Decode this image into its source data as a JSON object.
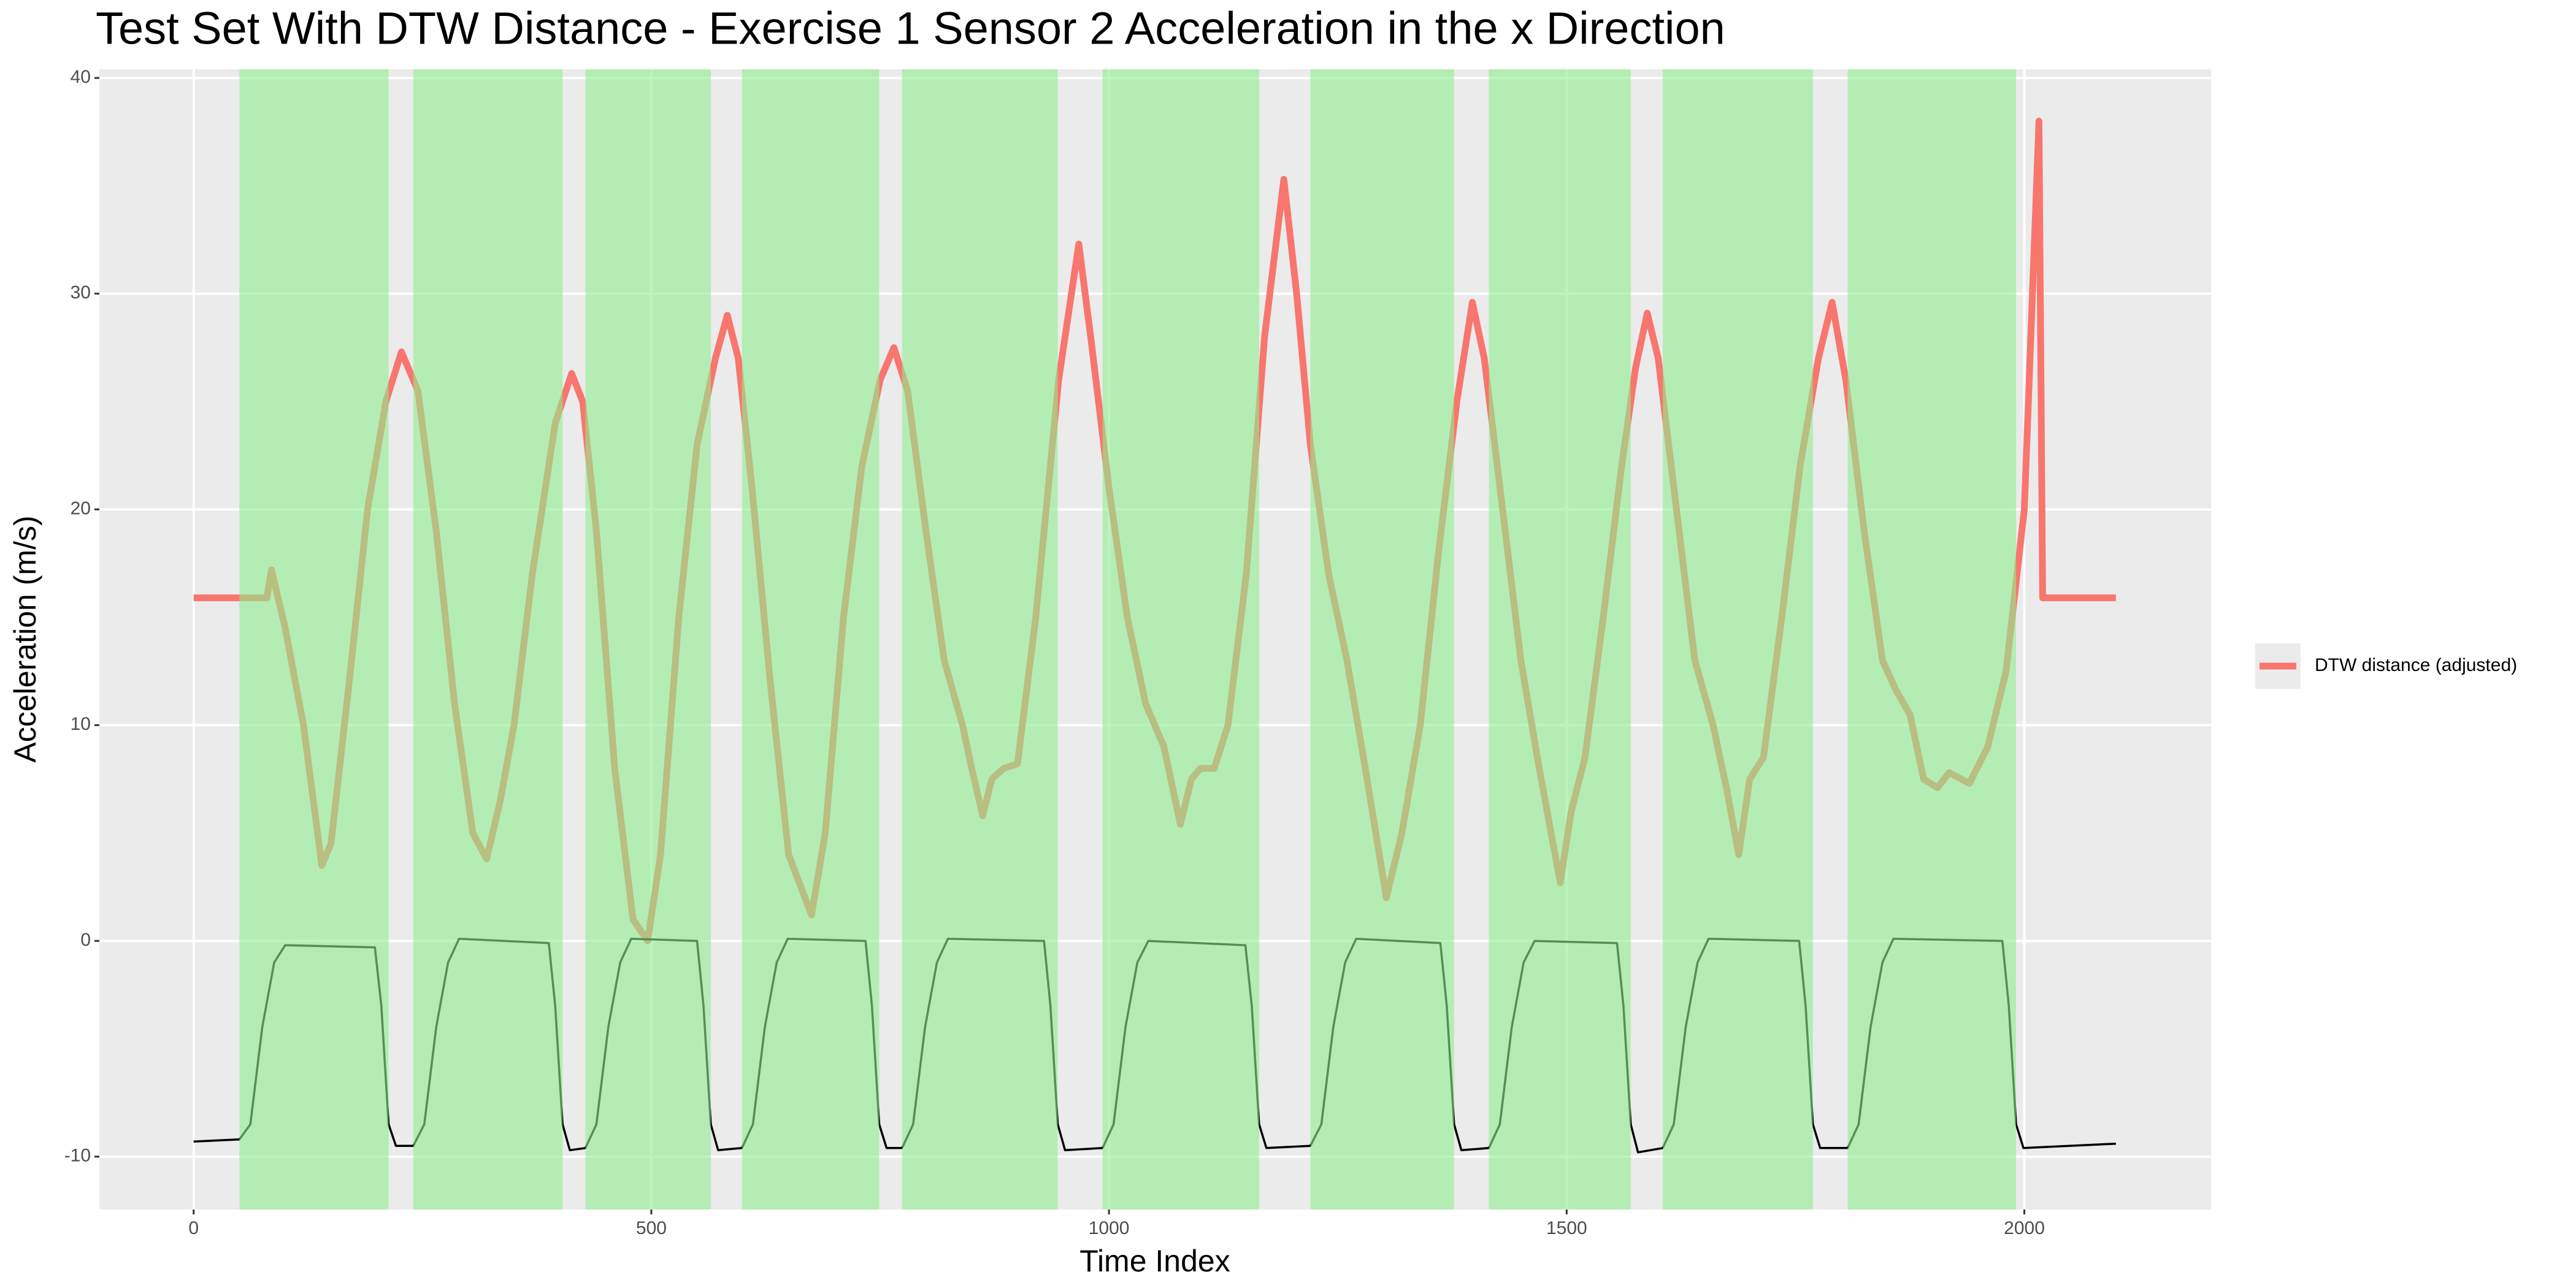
{
  "chart_data": {
    "type": "line",
    "title": "Test Set With DTW Distance - Exercise 1 Sensor 2 Acceleration in the x Direction",
    "x_label": "Time Index",
    "y_label": "Acceleration (m/s)",
    "xlim": [
      -103,
      2204
    ],
    "ylim": [
      -12.45,
      40.4
    ],
    "xticks": [
      0,
      500,
      1000,
      1500,
      2000
    ],
    "yticks": [
      -10,
      0,
      10,
      20,
      30,
      40
    ],
    "grid": true,
    "legend_position": "right",
    "region_color": "#90ee90",
    "regions": [
      {
        "start": 50,
        "end": 213
      },
      {
        "start": 240,
        "end": 403
      },
      {
        "start": 428,
        "end": 565
      },
      {
        "start": 599,
        "end": 749
      },
      {
        "start": 774,
        "end": 944
      },
      {
        "start": 993,
        "end": 1164
      },
      {
        "start": 1220,
        "end": 1377
      },
      {
        "start": 1415,
        "end": 1570
      },
      {
        "start": 1605,
        "end": 1769
      },
      {
        "start": 1807,
        "end": 1991
      }
    ],
    "series": [
      {
        "name": "DTW distance (adjusted)",
        "color": "#f8766d",
        "x": [
          0,
          80,
          85,
          100,
          120,
          140,
          150,
          170,
          190,
          210,
          227,
          245,
          265,
          285,
          305,
          320,
          335,
          350,
          370,
          395,
          413,
          425,
          440,
          460,
          480,
          496,
          510,
          530,
          550,
          570,
          583,
          595,
          610,
          630,
          650,
          675,
          690,
          710,
          730,
          750,
          765,
          780,
          800,
          820,
          840,
          850,
          862,
          872,
          885,
          900,
          920,
          945,
          967,
          980,
          1000,
          1020,
          1040,
          1060,
          1078,
          1090,
          1100,
          1115,
          1130,
          1150,
          1170,
          1191,
          1205,
          1220,
          1240,
          1260,
          1280,
          1303,
          1320,
          1340,
          1360,
          1380,
          1397,
          1410,
          1430,
          1450,
          1470,
          1493,
          1505,
          1520,
          1540,
          1560,
          1575,
          1588,
          1600,
          1620,
          1640,
          1660,
          1675,
          1688,
          1700,
          1715,
          1735,
          1755,
          1775,
          1790,
          1805,
          1825,
          1845,
          1860,
          1875,
          1890,
          1905,
          1918,
          1940,
          1960,
          1980,
          2000,
          2016,
          2020,
          2100
        ],
        "values": [
          15.9,
          15.9,
          17.2,
          14.5,
          10,
          3.5,
          4.5,
          12,
          20,
          25,
          27.3,
          25.5,
          19,
          11,
          5,
          3.8,
          6.5,
          10,
          17,
          24,
          26.3,
          25,
          19,
          8,
          1,
          0,
          4,
          15,
          23,
          27,
          29,
          27,
          21,
          12,
          4,
          1.2,
          5,
          15,
          22,
          26,
          27.5,
          25.5,
          19,
          13,
          10,
          8,
          5.8,
          7.5,
          8,
          8.2,
          15,
          26,
          32.3,
          28,
          21,
          15,
          11,
          9,
          5.4,
          7.5,
          8,
          8,
          10,
          17,
          28,
          35.3,
          30,
          23,
          17,
          13,
          8,
          2,
          5,
          10,
          18,
          25,
          29.6,
          27,
          20,
          13,
          8,
          2.7,
          6,
          8.5,
          15,
          22,
          26.5,
          29.1,
          27,
          20,
          13,
          10,
          7,
          4,
          7.5,
          8.5,
          15,
          22,
          27,
          29.6,
          26,
          19,
          13,
          11.6,
          10.5,
          7.5,
          7.1,
          7.8,
          7.3,
          9,
          12.5,
          20,
          38,
          15.9,
          15.9
        ]
      },
      {
        "color": "#000000",
        "x": [
          0,
          50,
          62,
          75,
          88,
          100,
          198,
          205,
          213,
          221,
          240,
          252,
          265,
          278,
          290,
          388,
          395,
          403,
          411,
          428,
          440,
          453,
          466,
          478,
          550,
          557,
          565,
          573,
          599,
          611,
          624,
          637,
          649,
          734,
          741,
          749,
          757,
          774,
          786,
          799,
          812,
          824,
          929,
          936,
          944,
          952,
          993,
          1005,
          1018,
          1031,
          1043,
          1149,
          1156,
          1164,
          1172,
          1220,
          1232,
          1245,
          1258,
          1270,
          1362,
          1369,
          1377,
          1385,
          1415,
          1427,
          1440,
          1453,
          1465,
          1555,
          1562,
          1570,
          1578,
          1605,
          1617,
          1630,
          1643,
          1655,
          1754,
          1761,
          1769,
          1777,
          1807,
          1819,
          1832,
          1845,
          1857,
          1976,
          1983,
          1991,
          1999,
          2100
        ],
        "values": [
          -9.3,
          -9.2,
          -8.5,
          -4,
          -1,
          -0.2,
          -0.3,
          -3,
          -8.5,
          -9.5,
          -9.5,
          -8.5,
          -4,
          -1,
          0.1,
          -0.1,
          -3,
          -8.5,
          -9.7,
          -9.6,
          -8.5,
          -4,
          -1,
          0.1,
          0,
          -3,
          -8.5,
          -9.7,
          -9.6,
          -8.5,
          -4,
          -1,
          0.1,
          0,
          -3,
          -8.5,
          -9.6,
          -9.6,
          -8.5,
          -4,
          -1,
          0.1,
          0,
          -3,
          -8.5,
          -9.7,
          -9.6,
          -8.5,
          -4,
          -1,
          0,
          -0.2,
          -3,
          -8.5,
          -9.6,
          -9.5,
          -8.5,
          -4,
          -1,
          0.1,
          -0.1,
          -3,
          -8.5,
          -9.7,
          -9.6,
          -8.5,
          -4,
          -1,
          0,
          -0.1,
          -3,
          -8.5,
          -9.8,
          -9.6,
          -8.5,
          -4,
          -1,
          0.1,
          0,
          -3,
          -8.5,
          -9.6,
          -9.6,
          -8.5,
          -4,
          -1,
          0.1,
          0,
          -3,
          -8.5,
          -9.6,
          -9.4
        ]
      }
    ]
  }
}
